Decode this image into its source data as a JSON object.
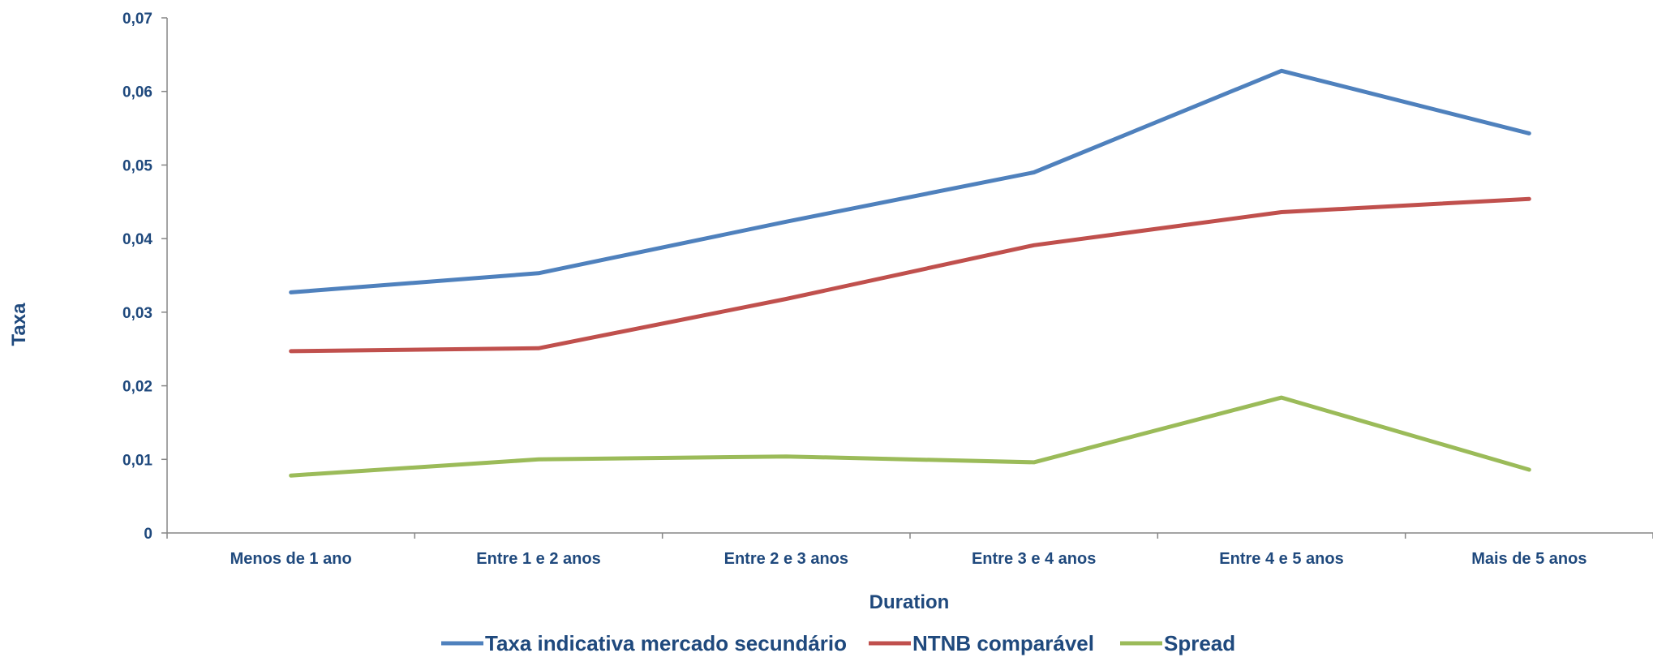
{
  "chart_data": {
    "type": "line",
    "categories": [
      "Menos de 1 ano",
      "Entre 1 e 2 anos",
      "Entre 2 e 3 anos",
      "Entre 3 e 4 anos",
      "Entre 4 e 5 anos",
      "Mais de 5 anos"
    ],
    "series": [
      {
        "name": "Taxa indicativa mercado secundário",
        "color": "#4f81bd",
        "values": [
          0.0327,
          0.0353,
          0.0423,
          0.049,
          0.0628,
          0.0543
        ]
      },
      {
        "name": "NTNB comparável",
        "color": "#c0504d",
        "values": [
          0.0247,
          0.0251,
          0.0318,
          0.0391,
          0.0436,
          0.0454
        ]
      },
      {
        "name": "Spread",
        "color": "#9bbb59",
        "values": [
          0.0078,
          0.01,
          0.0104,
          0.0096,
          0.0184,
          0.0086
        ]
      }
    ],
    "xlabel": "Duration",
    "ylabel": "Taxa",
    "ylim": [
      0,
      0.07
    ],
    "yticks": [
      "0",
      "0,01",
      "0,02",
      "0,03",
      "0,04",
      "0,05",
      "0,06",
      "0,07"
    ],
    "grid": false,
    "legend": "bottom"
  }
}
